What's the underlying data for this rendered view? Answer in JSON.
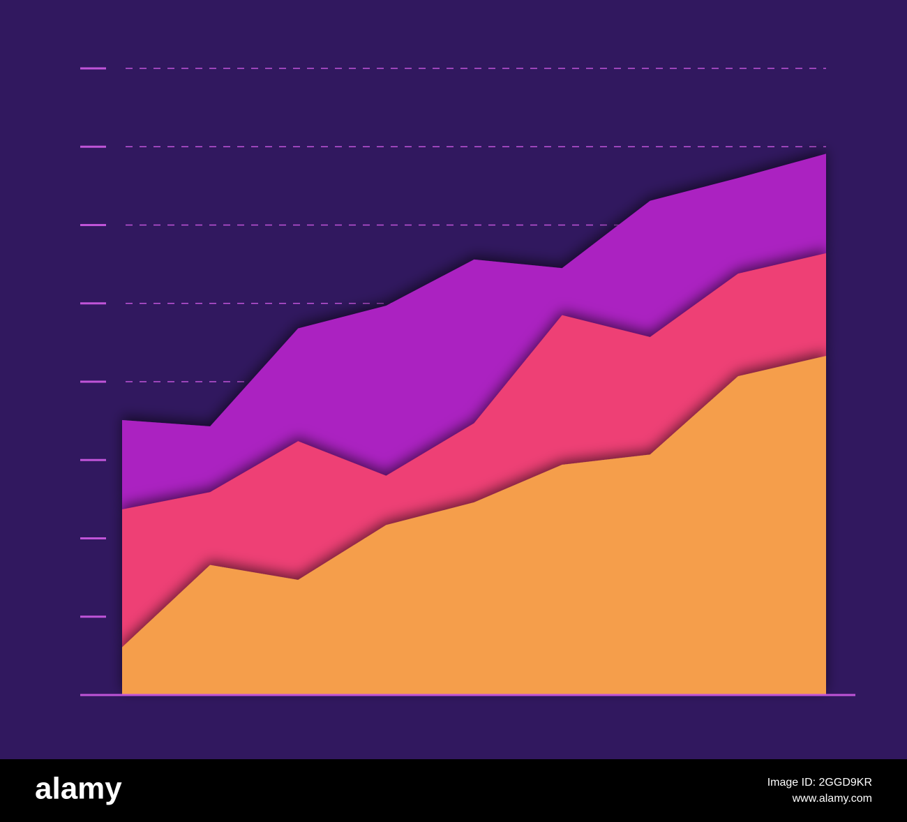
{
  "chart_data": {
    "type": "area",
    "x": [
      0,
      1,
      2,
      3,
      4,
      5,
      6,
      7,
      8
    ],
    "xlim": [
      0,
      8
    ],
    "series": [
      {
        "color": "#f59e4c",
        "values": [
          0.61,
          1.66,
          1.47,
          2.17,
          2.46,
          2.94,
          3.07,
          4.07,
          4.33
        ]
      },
      {
        "color": "#ee3f74",
        "values": [
          1.76,
          0.93,
          1.77,
          0.63,
          1.01,
          1.91,
          1.5,
          1.31,
          1.31
        ]
      },
      {
        "color": "#ab24c1",
        "values": [
          1.14,
          0.84,
          1.44,
          2.17,
          2.09,
          0.6,
          1.74,
          1.22,
          1.27
        ]
      }
    ],
    "stacked": true,
    "ylim": [
      0,
      8
    ],
    "yticks": [
      1,
      2,
      3,
      4,
      5,
      6,
      7,
      8
    ],
    "grid": true
  },
  "footer": {
    "brand": "alamy",
    "image_id": "Image ID: 2GGD9KR",
    "url": "www.alamy.com"
  }
}
